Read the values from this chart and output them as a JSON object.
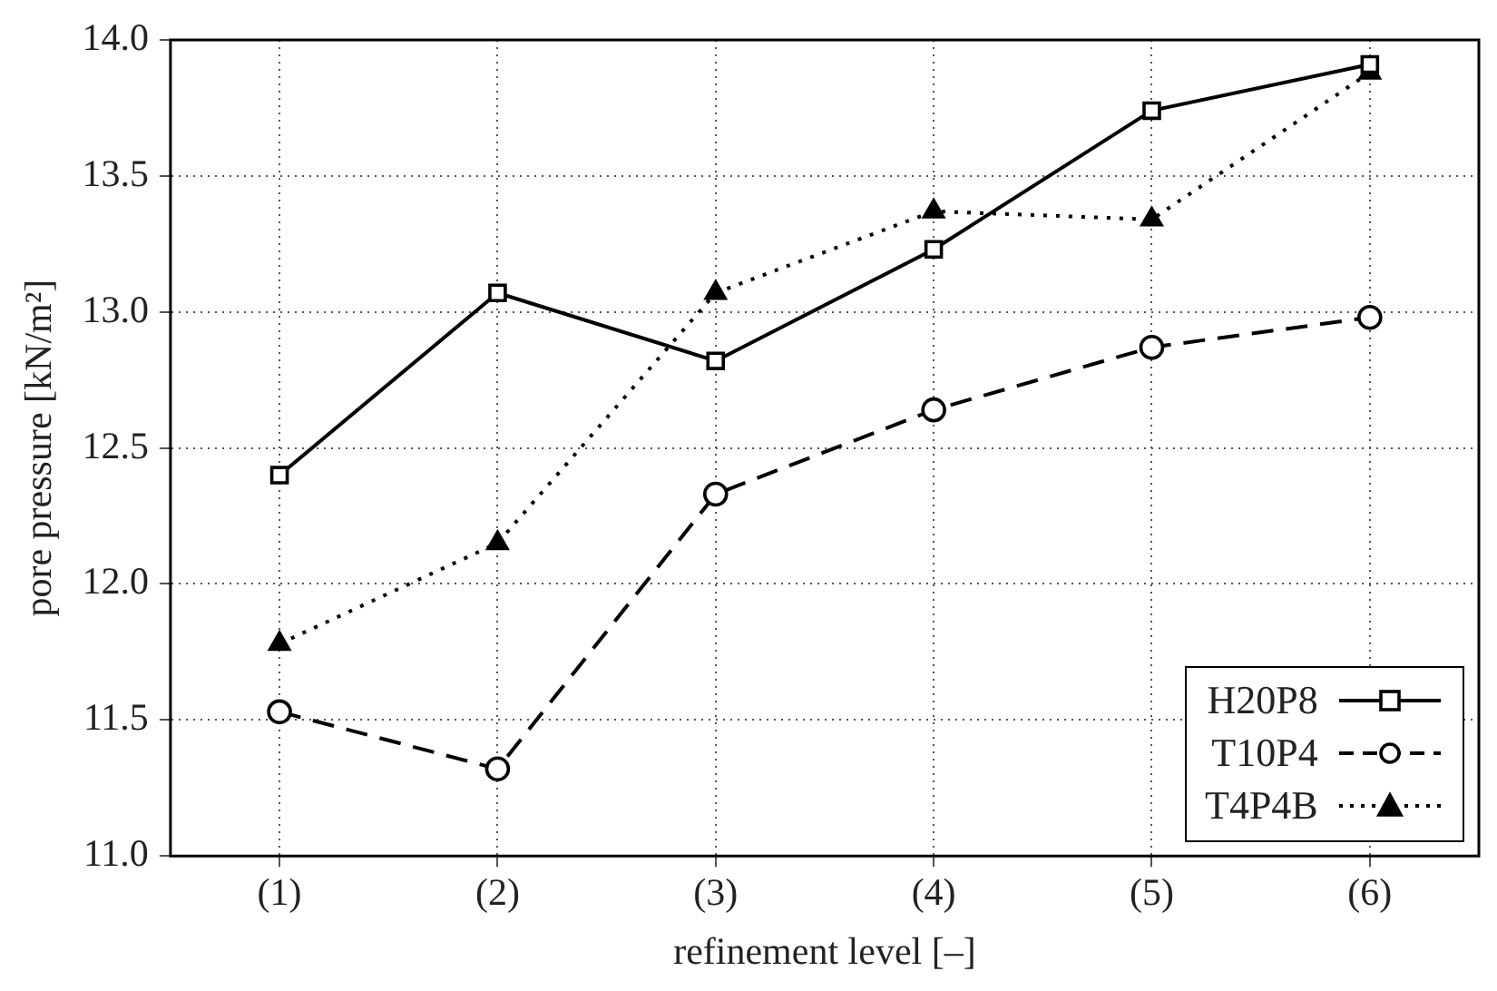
{
  "chart_data": {
    "type": "line",
    "xlabel": "refinement level [–]",
    "ylabel": "pore pressure [kN/m²]",
    "categories": [
      "(1)",
      "(2)",
      "(3)",
      "(4)",
      "(5)",
      "(6)"
    ],
    "ylim": [
      11.0,
      14.0
    ],
    "yticks": [
      {
        "value": 11.0,
        "label": "11.0"
      },
      {
        "value": 11.5,
        "label": "11.5"
      },
      {
        "value": 12.0,
        "label": "12.0"
      },
      {
        "value": 12.5,
        "label": "12.5"
      },
      {
        "value": 13.0,
        "label": "13.0"
      },
      {
        "value": 13.5,
        "label": "13.5"
      },
      {
        "value": 14.0,
        "label": "14.0"
      }
    ],
    "grid": true,
    "legend": "bottom right",
    "series": [
      {
        "name": "H20P8",
        "color": "#000000",
        "marker": "square",
        "line_style": "solid",
        "values": [
          12.4,
          13.07,
          12.82,
          13.23,
          13.74,
          13.91
        ]
      },
      {
        "name": "T10P4",
        "color": "#000000",
        "marker": "circle",
        "line_style": "dashed",
        "values": [
          11.53,
          11.32,
          12.33,
          12.64,
          12.87,
          12.98
        ]
      },
      {
        "name": "T4P4B",
        "color": "#000000",
        "marker": "triangle",
        "line_style": "dotted",
        "values": [
          11.78,
          12.15,
          13.07,
          13.37,
          13.34,
          13.88
        ]
      }
    ]
  }
}
